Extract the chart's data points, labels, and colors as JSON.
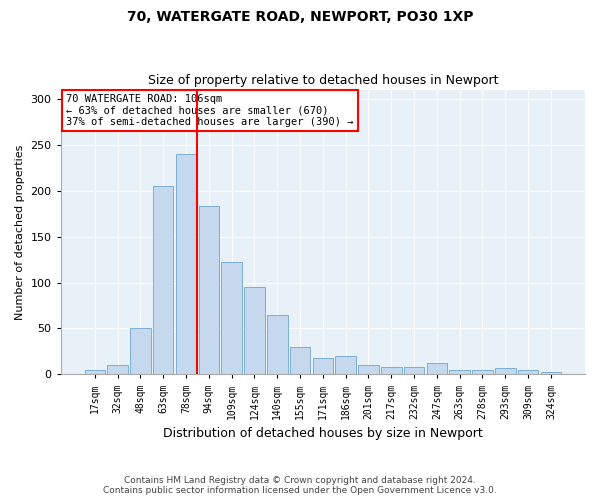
{
  "title1": "70, WATERGATE ROAD, NEWPORT, PO30 1XP",
  "title2": "Size of property relative to detached houses in Newport",
  "xlabel": "Distribution of detached houses by size in Newport",
  "ylabel": "Number of detached properties",
  "categories": [
    "17sqm",
    "32sqm",
    "48sqm",
    "63sqm",
    "78sqm",
    "94sqm",
    "109sqm",
    "124sqm",
    "140sqm",
    "155sqm",
    "171sqm",
    "186sqm",
    "201sqm",
    "217sqm",
    "232sqm",
    "247sqm",
    "263sqm",
    "278sqm",
    "293sqm",
    "309sqm",
    "324sqm"
  ],
  "values": [
    5,
    10,
    50,
    205,
    240,
    183,
    122,
    95,
    65,
    30,
    18,
    20,
    10,
    8,
    8,
    12,
    5,
    5,
    7,
    5,
    3
  ],
  "bar_color": "#c5d8ed",
  "bar_edgecolor": "#7bafd4",
  "marker_label": "70 WATERGATE ROAD: 106sqm",
  "annotation_line1": "← 63% of detached houses are smaller (670)",
  "annotation_line2": "37% of semi-detached houses are larger (390) →",
  "vline_color": "red",
  "vline_x": 5.5,
  "ylim": [
    0,
    310
  ],
  "yticks": [
    0,
    50,
    100,
    150,
    200,
    250,
    300
  ],
  "bg_color": "#e8f0f8",
  "footer1": "Contains HM Land Registry data © Crown copyright and database right 2024.",
  "footer2": "Contains public sector information licensed under the Open Government Licence v3.0."
}
